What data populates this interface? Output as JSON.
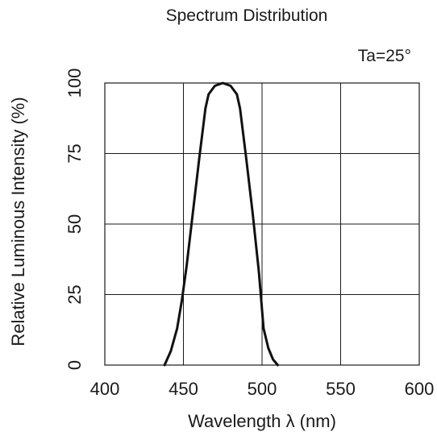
{
  "chart_data": {
    "type": "line",
    "title": "Spectrum Distribution",
    "annotation": "Ta=25°",
    "xlabel": "Wavelength λ (nm)",
    "ylabel": "Relative Luminous Intensity  (%)",
    "xlim": [
      400,
      600
    ],
    "ylim": [
      0,
      100
    ],
    "xticks": [
      "400",
      "450",
      "500",
      "550",
      "600"
    ],
    "yticks": [
      "0",
      "25",
      "50",
      "75",
      "100"
    ],
    "grid": true,
    "line_color": "#111111",
    "series": [
      {
        "x": [
          438,
          442,
          446,
          449,
          452,
          456,
          460,
          464,
          466,
          470,
          475,
          480,
          484,
          486,
          490,
          494,
          498,
          501,
          504,
          507,
          510
        ],
        "y": [
          0,
          5,
          13,
          23,
          35,
          54,
          73,
          91,
          96,
          99,
          100,
          99,
          96,
          91,
          73,
          54,
          33,
          13,
          6,
          2,
          0
        ]
      }
    ]
  }
}
